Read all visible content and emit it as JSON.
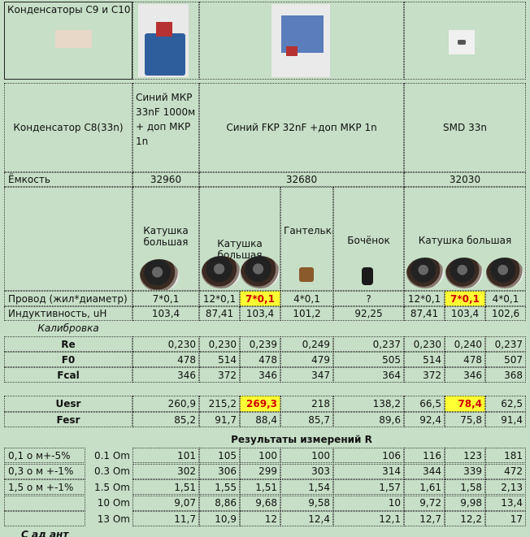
{
  "title_box": "Конденсаторы C9 и C10",
  "row_capacitor": {
    "label": "Конденсатор C8(33n)",
    "col1": "Синий МКР 33nF 1000м + доп МКР 1n",
    "col2": "Синий FKP 32nF +доп МКР 1n",
    "col3": "SMD 33n"
  },
  "row_capacity": {
    "label": "Ёмкость",
    "v1": "32960",
    "v2": "32680",
    "v3": "32030"
  },
  "coil_headers": {
    "big1": "Катушка большая",
    "big2": "Катушка большая",
    "dumbbell": "Гантелька",
    "barrel": "Бочёнок",
    "big3": "Катушка большая"
  },
  "wire": {
    "label": "Провод (жил*диаметр)",
    "values": [
      "7*0,1",
      "12*0,1",
      "7*0,1",
      "4*0,1",
      "?",
      "12*0,1",
      "7*0,1",
      "4*0,1"
    ]
  },
  "inductance": {
    "label": "Индуктивность, uH",
    "values": [
      "103,4",
      "87,41",
      "103,4",
      "101,2",
      "92,25",
      "87,41",
      "103,4",
      "102,6"
    ]
  },
  "calibration_label": "Калибровка",
  "re": {
    "label": "Re",
    "values": [
      "0,230",
      "0,230",
      "0,239",
      "0,249",
      "0,237",
      "0,230",
      "0,240",
      "0,237"
    ]
  },
  "f0": {
    "label": "F0",
    "values": [
      "478",
      "514",
      "478",
      "479",
      "505",
      "514",
      "478",
      "507"
    ]
  },
  "fcal": {
    "label": "Fcal",
    "values": [
      "346",
      "372",
      "346",
      "347",
      "364",
      "372",
      "346",
      "368"
    ]
  },
  "uesr": {
    "label": "Uesr",
    "values": [
      "260,9",
      "215,2",
      "269,3",
      "218",
      "138,2",
      "66,5",
      "78,4",
      "62,5"
    ]
  },
  "fesr": {
    "label": "Fesr",
    "values": [
      "85,2",
      "91,7",
      "88,4",
      "85,7",
      "89,6",
      "92,4",
      "75,8",
      "91,4"
    ]
  },
  "results_title": "Результаты измерений R",
  "results": [
    {
      "label": "0,1 о м+-5%",
      "sub": "0.1 Om",
      "values": [
        "101",
        "105",
        "100",
        "100",
        "106",
        "116",
        "123",
        "181"
      ]
    },
    {
      "label": "0,3 о м +-1%",
      "sub": "0.3 Om",
      "values": [
        "302",
        "306",
        "299",
        "303",
        "314",
        "344",
        "339",
        "472"
      ]
    },
    {
      "label": "1,5 о м +-1%",
      "sub": "1.5 Om",
      "values": [
        "1,51",
        "1,55",
        "1,51",
        "1,54",
        "1,57",
        "1,61",
        "1,58",
        "2,13"
      ]
    },
    {
      "label": "",
      "sub": "10 Om",
      "values": [
        "9,07",
        "8,86",
        "9,68",
        "9,58",
        "10",
        "9,72",
        "9,98",
        "13,4"
      ]
    },
    {
      "label": "",
      "sub": "13 Om",
      "values": [
        "11,7",
        "10,9",
        "12",
        "12,4",
        "12,1",
        "12,7",
        "12,2",
        "17"
      ]
    }
  ],
  "footer_cut": "С ад ант"
}
